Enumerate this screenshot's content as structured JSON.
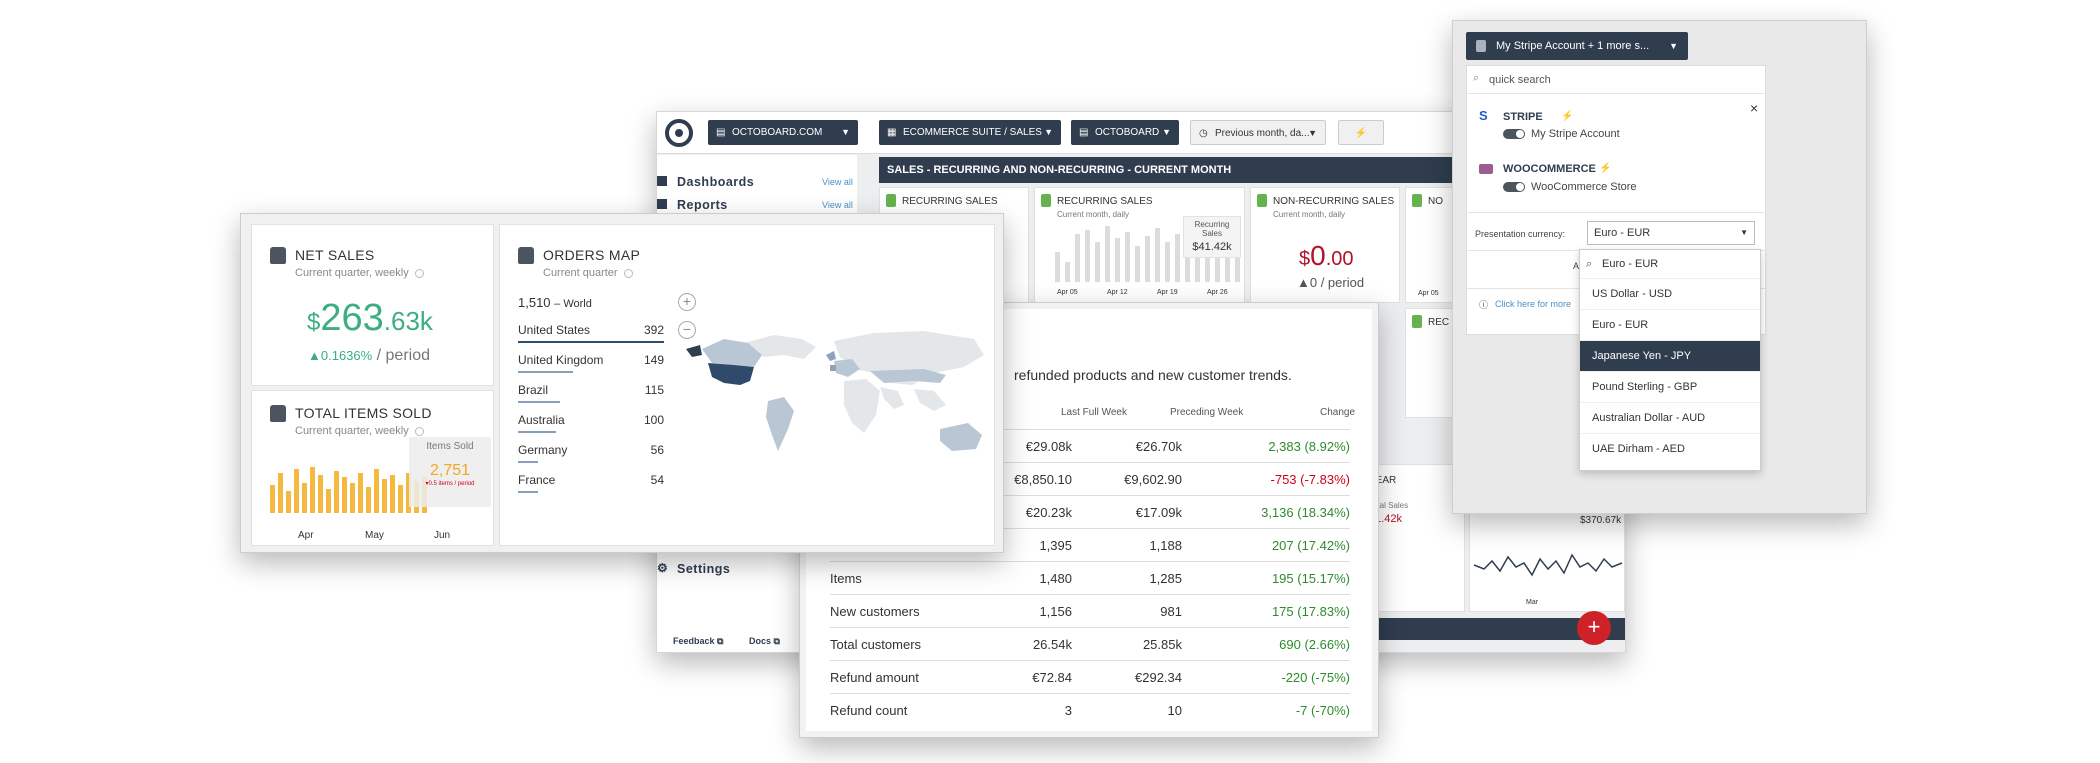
{
  "dashboard": {
    "account_dd": "OCTOBOARD.COM",
    "suite_dd": "ECOMMERCE SUITE / SALES",
    "org_dd": "OCTOBOARD",
    "period_dd": "Previous month, da...",
    "nav": {
      "dashboards": "Dashboards",
      "reports": "Reports",
      "settings": "Settings",
      "view_all": "View all"
    },
    "banner": "SALES - RECURRING AND NON-RECURRING - CURRENT MONTH",
    "cards": {
      "recurring1": "RECURRING SALES",
      "recurring2": "RECURRING SALES",
      "recurring2_sub": "Current month, daily",
      "nonrec": "NON-RECURRING SALES",
      "nonrec_sub": "Current month, daily",
      "nonrec_value_cur": "$",
      "nonrec_value": "0",
      "nonrec_value_dec": ".00",
      "nonrec_change": "▲0 / period",
      "no_trunc": "NO",
      "rec_trunc": "REC",
      "tooltip_label": "Recurring Sales",
      "tooltip_value": "$41.42k",
      "dates": [
        "Apr 05",
        "Apr 12",
        "Apr 19",
        "Apr 26"
      ],
      "apr_short": "Apr 05",
      "year_trunc": "YEAR",
      "total_sales": "Total Sales",
      "total_value": "41.42k",
      "total_value2": "$370.67k",
      "mar": "Mar"
    },
    "footer": {
      "feedback": "Feedback",
      "docs": "Docs"
    },
    "add_btn": "+"
  },
  "net_sales": {
    "title": "NET SALES",
    "subtitle": "Current quarter, weekly",
    "currency": "$",
    "value_int": "263",
    "value_dec": ".63k",
    "change": "▲0.1636%",
    "period": "/ period"
  },
  "items_sold": {
    "title": "TOTAL ITEMS SOLD",
    "subtitle": "Current quarter, weekly",
    "tooltip_label": "Items Sold",
    "tooltip_value": "2,751",
    "tooltip_sub": "▾0.5 items / period",
    "months": [
      "Apr",
      "May",
      "Jun"
    ]
  },
  "orders_map": {
    "title": "ORDERS MAP",
    "subtitle": "Current quarter",
    "total": "1,510",
    "total_label": "– World",
    "rows": [
      {
        "country": "United States",
        "value": "392",
        "share": 1.0
      },
      {
        "country": "United Kingdom",
        "value": "149",
        "share": 0.38
      },
      {
        "country": "Brazil",
        "value": "115",
        "share": 0.29
      },
      {
        "country": "Australia",
        "value": "100",
        "share": 0.26
      },
      {
        "country": "Germany",
        "value": "56",
        "share": 0.14
      },
      {
        "country": "France",
        "value": "54",
        "share": 0.14
      }
    ]
  },
  "report": {
    "intro": "refunded products and new customer trends.",
    "headers": [
      "Last Full Week",
      "Preceding Week",
      "Change"
    ],
    "rows": [
      {
        "label": "",
        "last": "€29.08k",
        "prev": "€26.70k",
        "change": "2,383 (8.92%)",
        "dir": "pos"
      },
      {
        "label": "",
        "last": "€8,850.10",
        "prev": "€9,602.90",
        "change": "-753 (-7.83%)",
        "dir": "neg"
      },
      {
        "label": "",
        "last": "€20.23k",
        "prev": "€17.09k",
        "change": "3,136 (18.34%)",
        "dir": "pos"
      },
      {
        "label": "",
        "last": "1,395",
        "prev": "1,188",
        "change": "207 (17.42%)",
        "dir": "pos"
      },
      {
        "label": "Items",
        "last": "1,480",
        "prev": "1,285",
        "change": "195 (15.17%)",
        "dir": "pos"
      },
      {
        "label": "New customers",
        "last": "1,156",
        "prev": "981",
        "change": "175 (17.83%)",
        "dir": "pos"
      },
      {
        "label": "Total customers",
        "last": "26.54k",
        "prev": "25.85k",
        "change": "690 (2.66%)",
        "dir": "pos"
      },
      {
        "label": "Refund amount",
        "last": "€72.84",
        "prev": "€292.34",
        "change": "-220 (-75%)",
        "dir": "pos"
      },
      {
        "label": "Refund count",
        "last": "3",
        "prev": "10",
        "change": "-7 (-70%)",
        "dir": "pos"
      }
    ]
  },
  "currency_panel": {
    "account_dd": "My Stripe Account + 1 more s...",
    "search_placeholder": "quick search",
    "close": "×",
    "stripe_label": "STRIPE",
    "stripe_account": "My Stripe Account",
    "woo_label": "WOOCOMMERCE",
    "woo_account": "WooCommerce Store",
    "presentation_label": "Presentation currency:",
    "selected": "Euro - EUR",
    "options_search": "Euro - EUR",
    "options": [
      "US Dollar - USD",
      "Euro - EUR",
      "Japanese Yen - JPY",
      "Pound Sterling - GBP",
      "Australian Dollar - AUD",
      "UAE Dirham - AED"
    ],
    "highlighted": "Japanese Yen - JPY",
    "apply_trunc": "A",
    "help_link": "Click here for more"
  },
  "colors": {
    "navy": "#2f3d4f",
    "green": "#3cae80",
    "orange": "#f5a623",
    "red": "#d0021b",
    "plus_red": "#cf2228"
  }
}
